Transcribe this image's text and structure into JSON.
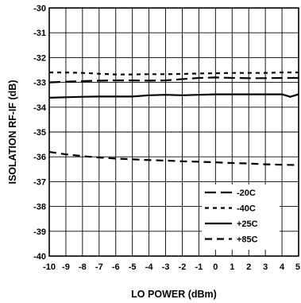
{
  "chart_data": {
    "type": "line",
    "title": "",
    "xlabel": "LO POWER (dBm)",
    "ylabel": "ISOLATION RF-IF (dB)",
    "xlim": [
      -10,
      5
    ],
    "ylim": [
      -40,
      -30
    ],
    "x_ticks": [
      "-10",
      "-9",
      "-8",
      "-7",
      "-6",
      "-5",
      "-4",
      "-3",
      "-2",
      "-1",
      "0",
      "1",
      "2",
      "3",
      "4",
      "5"
    ],
    "y_ticks": [
      "-30",
      "-31",
      "-32",
      "-33",
      "-34",
      "-35",
      "-36",
      "-37",
      "-38",
      "-39",
      "-40"
    ],
    "grid": true,
    "legend_position": "bottom-right",
    "series": [
      {
        "name": "-20C",
        "dash": "long-dash",
        "x": [
          -10,
          -9,
          -8,
          -7,
          -6,
          -5,
          -4,
          -3,
          -2,
          -1,
          0,
          1,
          2,
          3,
          4,
          5
        ],
        "y": [
          -33.0,
          -32.97,
          -32.95,
          -32.93,
          -32.92,
          -32.92,
          -32.93,
          -32.92,
          -32.87,
          -32.82,
          -32.8,
          -32.82,
          -32.83,
          -32.83,
          -32.82,
          -32.82
        ]
      },
      {
        "name": "-40C",
        "dash": "short-dash",
        "x": [
          -10,
          -9,
          -8,
          -7,
          -6,
          -5,
          -4,
          -3,
          -2,
          -1,
          0,
          1,
          2,
          3,
          4,
          5
        ],
        "y": [
          -32.6,
          -32.6,
          -32.62,
          -32.65,
          -32.68,
          -32.68,
          -32.67,
          -32.67,
          -32.66,
          -32.64,
          -32.63,
          -32.62,
          -32.62,
          -32.62,
          -32.6,
          -32.6
        ]
      },
      {
        "name": "+25C",
        "dash": "solid",
        "x": [
          -10,
          -9,
          -8,
          -7,
          -6,
          -5,
          -4,
          -3,
          -2,
          -1,
          0,
          1,
          2,
          3,
          4,
          4.5,
          5
        ],
        "y": [
          -33.62,
          -33.6,
          -33.58,
          -33.57,
          -33.57,
          -33.57,
          -33.52,
          -33.5,
          -33.52,
          -33.5,
          -33.48,
          -33.48,
          -33.48,
          -33.48,
          -33.48,
          -33.58,
          -33.48
        ]
      },
      {
        "name": "+85C",
        "dash": "medium-dash",
        "x": [
          -10,
          -9,
          -8,
          -7,
          -6,
          -5,
          -4,
          -3,
          -2,
          -1,
          0,
          1,
          2,
          3,
          4,
          5
        ],
        "y": [
          -35.8,
          -35.9,
          -35.97,
          -36.03,
          -36.07,
          -36.1,
          -36.13,
          -36.15,
          -36.18,
          -36.2,
          -36.22,
          -36.25,
          -36.27,
          -36.3,
          -36.32,
          -36.33
        ]
      }
    ]
  }
}
